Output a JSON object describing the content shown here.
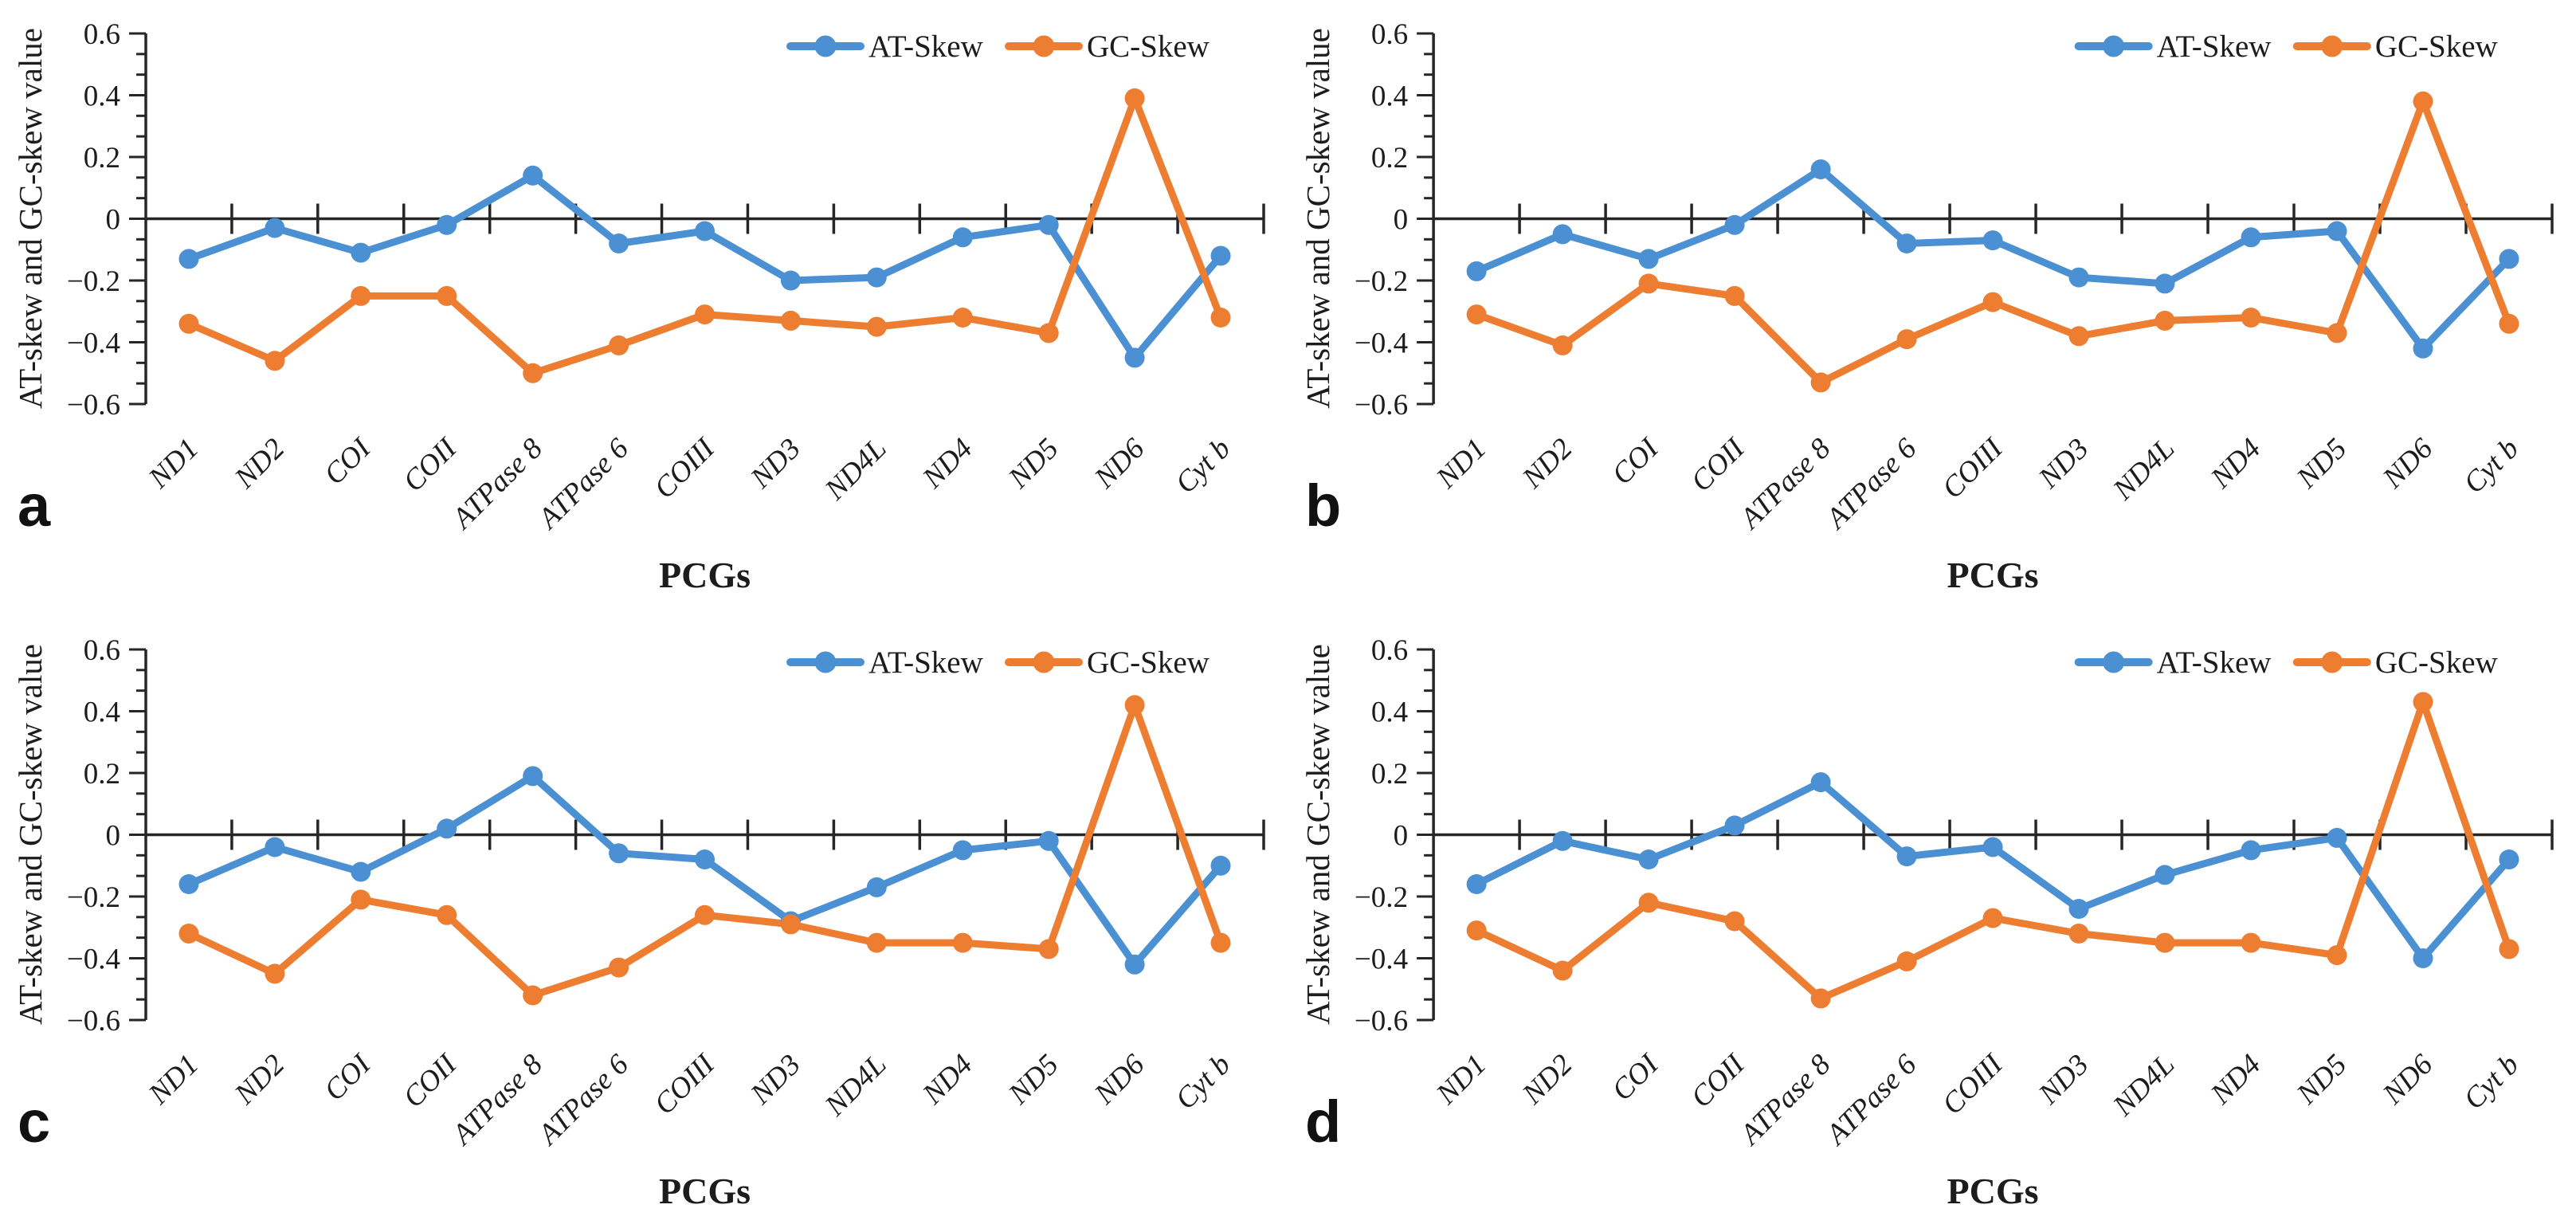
{
  "figure": {
    "description": "Four-panel line figure of AT-skew and GC-skew values across 13 mitochondrial protein-coding genes",
    "colors": {
      "at_skew": "#4A90D3",
      "gc_skew": "#ED7D31",
      "axis": "#262626",
      "text": "#1c1c1c",
      "background": "#ffffff"
    }
  },
  "chart_data": [
    {
      "type": "line",
      "panel_label": "a",
      "xlabel": "PCGs",
      "ylabel": "AT-skew and GC-skew value",
      "ylim": [
        -0.6,
        0.6
      ],
      "grid": false,
      "legend_position": "top-right",
      "ytick_values": [
        0.6,
        0.4,
        0.2,
        0,
        -0.2,
        -0.4,
        -0.6
      ],
      "ytick_labels": [
        "0.6",
        "0.4",
        "0.2",
        "0",
        "−0.2",
        "−0.4",
        "−0.6"
      ],
      "categories": [
        "ND1",
        "ND2",
        "COI",
        "COII",
        "ATPase 8",
        "ATPase 6",
        "COIII",
        "ND3",
        "ND4L",
        "ND4",
        "ND5",
        "ND6",
        "Cyt b"
      ],
      "series": [
        {
          "name": "AT-Skew",
          "color": "#4A90D3",
          "values": [
            -0.13,
            -0.03,
            -0.11,
            -0.02,
            0.14,
            -0.08,
            -0.04,
            -0.2,
            -0.19,
            -0.06,
            -0.02,
            -0.45,
            -0.12
          ]
        },
        {
          "name": "GC-Skew",
          "color": "#ED7D31",
          "values": [
            -0.34,
            -0.46,
            -0.25,
            -0.25,
            -0.5,
            -0.41,
            -0.31,
            -0.33,
            -0.35,
            -0.32,
            -0.37,
            0.39,
            -0.32
          ]
        }
      ]
    },
    {
      "type": "line",
      "panel_label": "b",
      "xlabel": "PCGs",
      "ylabel": "AT-skew and GC-skew value",
      "ylim": [
        -0.6,
        0.6
      ],
      "grid": false,
      "legend_position": "top-right",
      "ytick_values": [
        0.6,
        0.4,
        0.2,
        0,
        -0.2,
        -0.4,
        -0.6
      ],
      "ytick_labels": [
        "0.6",
        "0.4",
        "0.2",
        "0",
        "−0.2",
        "−0.4",
        "−0.6"
      ],
      "categories": [
        "ND1",
        "ND2",
        "COI",
        "COII",
        "ATPase 8",
        "ATPase 6",
        "COIII",
        "ND3",
        "ND4L",
        "ND4",
        "ND5",
        "ND6",
        "Cyt b"
      ],
      "series": [
        {
          "name": "AT-Skew",
          "color": "#4A90D3",
          "values": [
            -0.17,
            -0.05,
            -0.13,
            -0.02,
            0.16,
            -0.08,
            -0.07,
            -0.19,
            -0.21,
            -0.06,
            -0.04,
            -0.42,
            -0.13
          ]
        },
        {
          "name": "GC-Skew",
          "color": "#ED7D31",
          "values": [
            -0.31,
            -0.41,
            -0.21,
            -0.25,
            -0.53,
            -0.39,
            -0.27,
            -0.38,
            -0.33,
            -0.32,
            -0.37,
            0.38,
            -0.34
          ]
        }
      ]
    },
    {
      "type": "line",
      "panel_label": "c",
      "xlabel": "PCGs",
      "ylabel": "AT-skew and GC-skew value",
      "ylim": [
        -0.6,
        0.6
      ],
      "grid": false,
      "legend_position": "top-right",
      "ytick_values": [
        0.6,
        0.4,
        0.2,
        0,
        -0.2,
        -0.4,
        -0.6
      ],
      "ytick_labels": [
        "0.6",
        "0.4",
        "0.2",
        "0",
        "−0.2",
        "−0.4",
        "−0.6"
      ],
      "categories": [
        "ND1",
        "ND2",
        "COI",
        "COII",
        "ATPase 8",
        "ATPase 6",
        "COIII",
        "ND3",
        "ND4L",
        "ND4",
        "ND5",
        "ND6",
        "Cyt b"
      ],
      "series": [
        {
          "name": "AT-Skew",
          "color": "#4A90D3",
          "values": [
            -0.16,
            -0.04,
            -0.12,
            0.02,
            0.19,
            -0.06,
            -0.08,
            -0.28,
            -0.17,
            -0.05,
            -0.02,
            -0.42,
            -0.1
          ]
        },
        {
          "name": "GC-Skew",
          "color": "#ED7D31",
          "values": [
            -0.32,
            -0.45,
            -0.21,
            -0.26,
            -0.52,
            -0.43,
            -0.26,
            -0.29,
            -0.35,
            -0.35,
            -0.37,
            0.42,
            -0.35
          ]
        }
      ]
    },
    {
      "type": "line",
      "panel_label": "d",
      "xlabel": "PCGs",
      "ylabel": "AT-skew and GC-skew value",
      "ylim": [
        -0.6,
        0.6
      ],
      "grid": false,
      "legend_position": "top-right",
      "ytick_values": [
        0.6,
        0.4,
        0.2,
        0,
        -0.2,
        -0.4,
        -0.6
      ],
      "ytick_labels": [
        "0.6",
        "0.4",
        "0.2",
        "0",
        "−0.2",
        "−0.4",
        "−0.6"
      ],
      "categories": [
        "ND1",
        "ND2",
        "COI",
        "COII",
        "ATPase 8",
        "ATPase 6",
        "COIII",
        "ND3",
        "ND4L",
        "ND4",
        "ND5",
        "ND6",
        "Cyt b"
      ],
      "series": [
        {
          "name": "AT-Skew",
          "color": "#4A90D3",
          "values": [
            -0.16,
            -0.02,
            -0.08,
            0.03,
            0.17,
            -0.07,
            -0.04,
            -0.24,
            -0.13,
            -0.05,
            -0.01,
            -0.4,
            -0.08
          ]
        },
        {
          "name": "GC-Skew",
          "color": "#ED7D31",
          "values": [
            -0.31,
            -0.44,
            -0.22,
            -0.28,
            -0.53,
            -0.41,
            -0.27,
            -0.32,
            -0.35,
            -0.35,
            -0.39,
            0.43,
            -0.37
          ]
        }
      ]
    }
  ]
}
